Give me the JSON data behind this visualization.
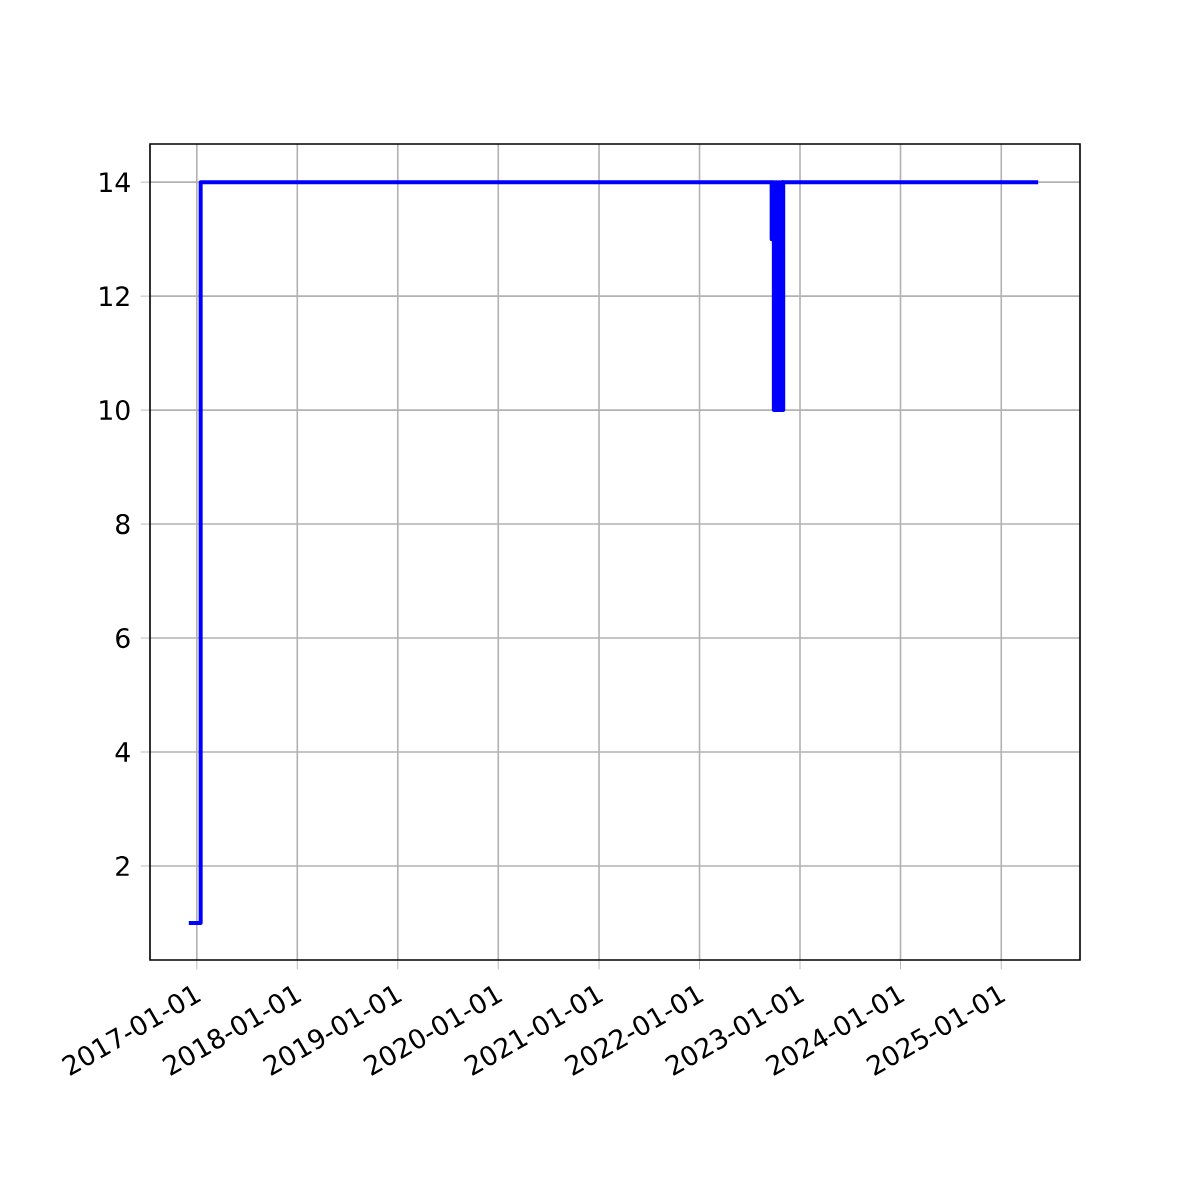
{
  "chart_data": {
    "type": "step",
    "color": "#0000ff",
    "x": [
      "2016-12-03",
      "2017-01-15",
      "2022-09-20",
      "2022-09-25",
      "2022-09-28",
      "2022-10-05",
      "2022-10-08",
      "2022-10-15",
      "2022-10-18",
      "2022-10-25",
      "2022-10-28",
      "2022-11-01",
      "2025-05-15"
    ],
    "values": [
      1,
      14,
      13,
      14,
      10,
      14,
      10,
      14,
      10,
      14,
      10,
      14,
      14
    ],
    "xlim": [
      "2016-07-15",
      "2025-10-14"
    ],
    "ylim": [
      0.35,
      14.67
    ],
    "xticks": [
      "2017-01-01",
      "2018-01-01",
      "2019-01-01",
      "2020-01-01",
      "2021-01-01",
      "2022-01-01",
      "2023-01-01",
      "2024-01-01",
      "2025-01-01"
    ],
    "yticks": [
      2,
      4,
      6,
      8,
      10,
      12,
      14
    ],
    "grid": true
  }
}
